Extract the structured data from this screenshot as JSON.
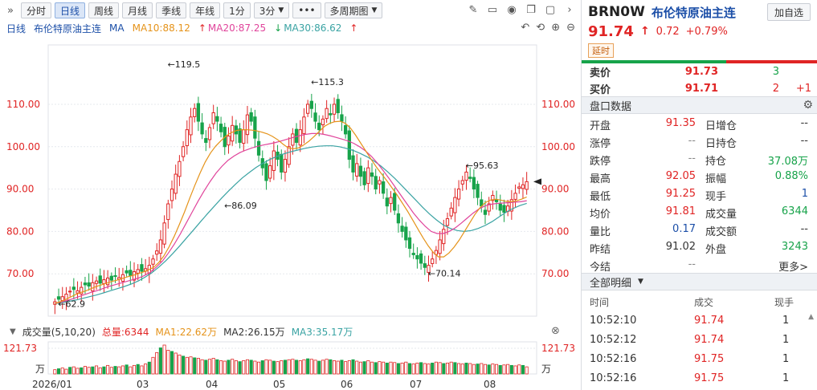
{
  "toolbar": {
    "expand_icon": "»",
    "tabs": [
      "分时",
      "日线",
      "周线",
      "月线",
      "季线",
      "年线",
      "1分",
      "3分"
    ],
    "active_tab": "日线",
    "more_icon": "•••",
    "multi_period": "多周期图",
    "right_icons": [
      "edit-icon",
      "bookmark-icon",
      "camera-icon",
      "copy-icon",
      "window-icon",
      "chevron-right-icon"
    ]
  },
  "ma_line": {
    "period": "日线",
    "symbol_name": "布伦特原油主连",
    "ma_label": "MA",
    "ma10": "MA10:88.12",
    "ma20": "MA20:87.25",
    "ma30": "MA30:86.62",
    "ma10_arrow": "↑",
    "ma20_arrow": "↑",
    "ma30_arrow": "↓",
    "ma_extra_arrow": "↑"
  },
  "colors": {
    "up": "#e02424",
    "down": "#17a34a",
    "ma10": "#e5931a",
    "ma20": "#e0449b",
    "ma30": "#3aa3a3",
    "accent": "#1c4fa8",
    "grid": "#e6e9ee"
  },
  "chart_data": {
    "type": "candlestick",
    "y_ticks": [
      "110.00",
      "100.00",
      "90.00",
      "80.00",
      "70.00"
    ],
    "ylim": [
      60,
      124
    ],
    "x_labels": [
      "2026/01",
      "03",
      "04",
      "05",
      "06",
      "07",
      "08"
    ],
    "annotations": [
      {
        "label": "119.5",
        "value": 119.5
      },
      {
        "label": "115.3",
        "value": 115.3
      },
      {
        "label": "86.09",
        "value": 86.09
      },
      {
        "label": "95.63",
        "value": 95.63
      },
      {
        "label": "70.14",
        "value": 70.14
      },
      {
        "label": "62.9",
        "value": 62.9
      }
    ],
    "closes": [
      63.4,
      64.0,
      64.6,
      65.2,
      65.9,
      66.3,
      66.0,
      66.8,
      67.4,
      67.1,
      67.9,
      68.3,
      67.8,
      68.6,
      69.0,
      68.5,
      69.4,
      69.1,
      69.8,
      70.2,
      69.6,
      70.5,
      71.0,
      70.6,
      71.2,
      72.0,
      73.5,
      75.4,
      78.0,
      82.0,
      86.5,
      90.0,
      93.5,
      96.5,
      100.0,
      104.0,
      107.0,
      109.0,
      106.0,
      103.0,
      101.0,
      104.5,
      108.0,
      106.0,
      103.5,
      100.0,
      102.5,
      105.0,
      103.0,
      101.0,
      104.0,
      107.5,
      106.0,
      102.0,
      98.0,
      95.0,
      92.0,
      95.5,
      99.0,
      97.0,
      94.0,
      97.0,
      100.0,
      103.0,
      101.0,
      104.0,
      107.0,
      110.0,
      109.0,
      106.0,
      104.0,
      106.5,
      109.0,
      107.5,
      110.0,
      108.0,
      106.0,
      103.0,
      97.0,
      94.0,
      96.0,
      93.0,
      91.0,
      95.0,
      93.0,
      90.0,
      92.0,
      89.0,
      86.0,
      88.0,
      85.0,
      82.0,
      80.0,
      78.0,
      76.0,
      74.5,
      73.5,
      72.5,
      71.5,
      72.0,
      73.5,
      75.5,
      78.0,
      80.5,
      83.0,
      85.5,
      88.0,
      90.0,
      92.0,
      94.0,
      92.5,
      90.0,
      88.0,
      86.0,
      84.0,
      86.5,
      88.5,
      87.0,
      85.0,
      84.5,
      86.0,
      87.5,
      89.0,
      90.5,
      91.0,
      91.74
    ],
    "ma10": [
      63.0,
      63.4,
      63.9,
      64.5,
      65.1,
      65.6,
      66.0,
      66.5,
      67.0,
      67.4,
      67.8,
      68.2,
      68.5,
      68.9,
      69.3,
      69.6,
      70.0,
      70.4,
      70.9,
      71.5,
      72.6,
      74.2,
      76.3,
      78.8,
      81.6,
      84.6,
      87.8,
      90.9,
      93.8,
      96.4,
      98.5,
      100.1,
      101.4,
      102.5,
      103.3,
      103.8,
      104.0,
      104.0,
      103.9,
      103.7,
      103.4,
      103.0,
      102.4,
      101.6,
      100.6,
      99.7,
      99.5,
      99.7,
      100.4,
      101.3,
      102.4,
      103.6,
      104.8,
      105.5,
      105.9,
      106.0,
      105.5,
      104.4,
      102.7,
      100.8,
      98.9,
      97.0,
      95.2,
      93.6,
      92.0,
      90.3,
      88.6,
      86.7,
      84.8,
      82.7,
      80.6,
      78.5,
      76.6,
      75.0,
      74.0,
      74.0,
      74.9,
      76.3,
      78.0,
      80.0,
      82.0,
      84.0,
      85.6,
      86.8,
      87.4,
      87.6,
      87.4,
      87.1,
      87.0,
      87.2,
      87.6,
      88.12
    ],
    "ma20": [
      63.0,
      63.3,
      63.7,
      64.1,
      64.6,
      65.1,
      65.6,
      66.0,
      66.5,
      67.0,
      67.4,
      67.8,
      68.2,
      68.6,
      69.0,
      69.6,
      70.4,
      71.6,
      73.0,
      74.9,
      77.0,
      79.4,
      82.0,
      84.6,
      87.2,
      89.6,
      91.8,
      93.8,
      95.4,
      96.8,
      97.8,
      98.6,
      99.2,
      99.7,
      100.1,
      100.4,
      100.7,
      101.0,
      101.4,
      101.8,
      102.2,
      102.6,
      102.9,
      103.1,
      103.1,
      102.9,
      102.6,
      102.2,
      101.8,
      101.4,
      100.8,
      100.0,
      99.0,
      97.7,
      96.1,
      94.3,
      92.4,
      90.4,
      88.4,
      86.4,
      84.4,
      82.7,
      81.2,
      80.0,
      79.5,
      79.5,
      80.0,
      80.8,
      81.9,
      83.1,
      84.3,
      85.3,
      86.0,
      86.4,
      86.6,
      86.7,
      86.8,
      86.9,
      87.0,
      87.25
    ],
    "ma30": [
      63.0,
      63.2,
      63.5,
      63.8,
      64.2,
      64.6,
      65.0,
      65.5,
      66.0,
      66.5,
      67.0,
      67.6,
      68.3,
      69.2,
      70.3,
      71.6,
      73.1,
      74.8,
      76.6,
      78.5,
      80.4,
      82.3,
      84.2,
      86.0,
      87.8,
      89.5,
      91.1,
      92.6,
      93.9,
      95.1,
      96.1,
      97.0,
      97.7,
      98.3,
      98.8,
      99.2,
      99.6,
      99.9,
      100.1,
      100.2,
      100.2,
      100.0,
      99.6,
      99.1,
      98.4,
      97.6,
      96.6,
      95.4,
      94.0,
      92.5,
      90.8,
      89.1,
      87.4,
      85.7,
      84.1,
      82.7,
      81.5,
      80.7,
      80.2,
      80.0,
      80.2,
      80.7,
      81.4,
      82.3,
      83.4,
      84.5,
      85.4,
      86.1,
      86.62
    ],
    "volume_max_label": "121.73",
    "volume_unit": "万",
    "volume": [
      18,
      22,
      25,
      20,
      28,
      30,
      24,
      26,
      32,
      28,
      30,
      34,
      26,
      30,
      36,
      28,
      32,
      30,
      34,
      38,
      30,
      36,
      40,
      34,
      42,
      50,
      70,
      90,
      110,
      121.73,
      100,
      95,
      88,
      80,
      75,
      70,
      72,
      68,
      66,
      60,
      58,
      62,
      66,
      60,
      56,
      54,
      58,
      62,
      56,
      52,
      56,
      60,
      58,
      54,
      50,
      56,
      60,
      58,
      54,
      52,
      56,
      58,
      60,
      62,
      58,
      56,
      60,
      64,
      62,
      58,
      54,
      58,
      62,
      60,
      56,
      54,
      58,
      52,
      56,
      60,
      54,
      50,
      52,
      56,
      50,
      48,
      52,
      50,
      46,
      50,
      48,
      44,
      46,
      50,
      44,
      42,
      46,
      48,
      44,
      42,
      46,
      50,
      48,
      44,
      46,
      50,
      48,
      44,
      42,
      46,
      44,
      40,
      42,
      44,
      40,
      38,
      42,
      40,
      36,
      38,
      40,
      36,
      34,
      38,
      36,
      30
    ]
  },
  "vol_header": {
    "label": "成交量(5,10,20)",
    "total": "总量:6344",
    "ma1": "MA1:22.62万",
    "ma2": "MA2:26.15万",
    "ma3": "MA3:35.17万"
  },
  "quote": {
    "code": "BRN0W",
    "name": "布伦特原油主连",
    "add_fav": "加自选",
    "last": "91.74",
    "change": "0.72",
    "pct": "+0.79%",
    "delay_badge": "延时",
    "sell_label": "卖价",
    "sell_price": "91.73",
    "sell_qty": "3",
    "buy_label": "买价",
    "buy_price": "91.71",
    "buy_qty": "2",
    "buy_chg": "+1"
  },
  "panel": {
    "title": "盘口数据",
    "rows": [
      {
        "l1": "开盘",
        "v1": "91.35",
        "l2": "日增仓",
        "v2": "--"
      },
      {
        "l1": "涨停",
        "v1": "--",
        "l2": "日持仓",
        "v2": "--"
      },
      {
        "l1": "跌停",
        "v1": "--",
        "l2": "持仓",
        "v2": "37.08万"
      },
      {
        "l1": "最高",
        "v1": "92.05",
        "l2": "振幅",
        "v2": "0.88%"
      },
      {
        "l1": "最低",
        "v1": "91.25",
        "l2": "现手",
        "v2": "1"
      },
      {
        "l1": "均价",
        "v1": "91.81",
        "l2": "成交量",
        "v2": "6344"
      },
      {
        "l1": "量比",
        "v1": "0.17",
        "l2": "成交额",
        "v2": "--"
      },
      {
        "l1": "昨结",
        "v1": "91.02",
        "l2": "外盘",
        "v2": "3243"
      },
      {
        "l1": "今结",
        "v1": "--",
        "l2": "",
        "v2": "更多>"
      }
    ]
  },
  "detail": {
    "title": "全部明细",
    "cols": [
      "时间",
      "成交",
      "现手"
    ],
    "rows": [
      {
        "t": "10:52:10",
        "p": "91.74",
        "q": "1"
      },
      {
        "t": "10:52:12",
        "p": "91.74",
        "q": "1"
      },
      {
        "t": "10:52:16",
        "p": "91.75",
        "q": "1"
      },
      {
        "t": "10:52:16",
        "p": "91.75",
        "q": "1"
      }
    ]
  }
}
